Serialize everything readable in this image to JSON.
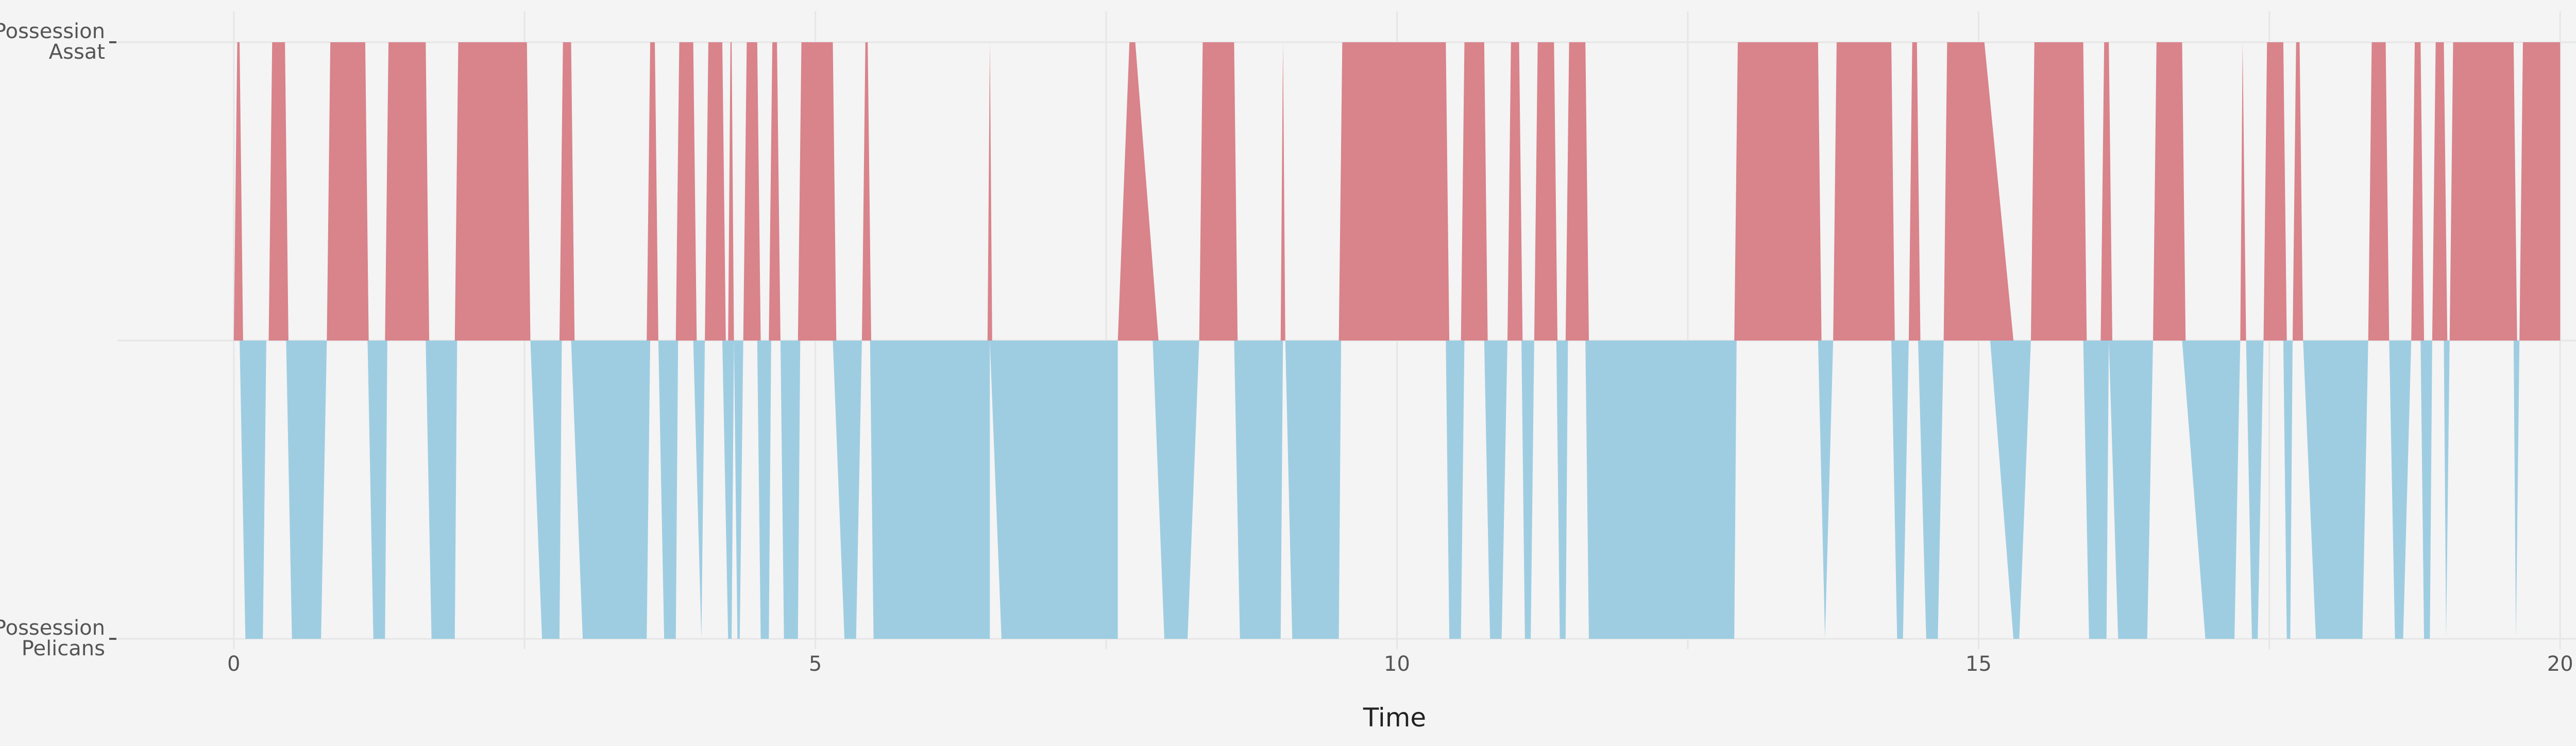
{
  "chart_data": {
    "type": "area",
    "title": "",
    "xlabel": "Time",
    "ylabel": "",
    "xlim": [
      -1,
      21
    ],
    "ylim": [
      -1,
      1
    ],
    "grid": true,
    "x_ticks": [
      0,
      5,
      10,
      15,
      20
    ],
    "y_ticks": [
      {
        "value": 1,
        "lines": [
          "Possession",
          "Assat"
        ]
      },
      {
        "value": -1,
        "lines": [
          "Possession",
          "Pelicans"
        ]
      }
    ],
    "colors": {
      "Assat": "#d9838b",
      "Pelicans": "#9ecde2",
      "background": "#f4f4f4",
      "grid": "#e6e6e6"
    },
    "series": [
      {
        "team": "Assat",
        "segments": [
          [
            0.0,
            0.03,
            0.05,
            0.08
          ],
          [
            0.3,
            0.33,
            0.44,
            0.47
          ],
          [
            0.8,
            0.83,
            1.13,
            1.16
          ],
          [
            1.3,
            1.33,
            1.65,
            1.68
          ],
          [
            1.9,
            1.93,
            2.52,
            2.55
          ],
          [
            2.8,
            2.83,
            2.9,
            2.93
          ],
          [
            3.55,
            3.58,
            3.62,
            3.65
          ],
          [
            3.8,
            3.83,
            3.95,
            3.98
          ],
          [
            4.05,
            4.08,
            4.2,
            4.23
          ],
          [
            4.25,
            4.27,
            4.28,
            4.3
          ],
          [
            4.38,
            4.41,
            4.5,
            4.53
          ],
          [
            4.6,
            4.63,
            4.67,
            4.7
          ],
          [
            4.85,
            4.88,
            5.15,
            5.18
          ],
          [
            5.4,
            5.43,
            5.45,
            5.48
          ],
          [
            6.48,
            6.5,
            6.5,
            6.52
          ],
          [
            7.6,
            7.7,
            7.75,
            7.95
          ],
          [
            8.3,
            8.33,
            8.6,
            8.63
          ],
          [
            9.0,
            9.02,
            9.02,
            9.04
          ],
          [
            9.5,
            9.53,
            10.42,
            10.45
          ],
          [
            10.55,
            10.58,
            10.75,
            10.78
          ],
          [
            10.95,
            10.98,
            11.05,
            11.08
          ],
          [
            11.18,
            11.21,
            11.35,
            11.38
          ],
          [
            11.45,
            11.48,
            11.62,
            11.65
          ],
          [
            12.9,
            12.93,
            13.62,
            13.65
          ],
          [
            13.75,
            13.78,
            14.25,
            14.28
          ],
          [
            14.4,
            14.43,
            14.47,
            14.5
          ],
          [
            14.7,
            14.73,
            15.05,
            15.3
          ],
          [
            15.45,
            15.48,
            15.9,
            15.93
          ],
          [
            16.05,
            16.08,
            16.12,
            16.15
          ],
          [
            16.5,
            16.53,
            16.75,
            16.78
          ],
          [
            17.25,
            17.27,
            17.27,
            17.3
          ],
          [
            17.45,
            17.48,
            17.62,
            17.65
          ],
          [
            17.7,
            17.73,
            17.76,
            17.79
          ],
          [
            18.35,
            18.38,
            18.5,
            18.53
          ],
          [
            18.72,
            18.75,
            18.8,
            18.83
          ],
          [
            18.9,
            18.93,
            19.0,
            19.03
          ],
          [
            19.05,
            19.08,
            19.6,
            19.63
          ],
          [
            19.65,
            19.68,
            20.0,
            20.0
          ]
        ]
      },
      {
        "team": "Pelicans",
        "segments": [
          [
            0.05,
            0.1,
            0.25,
            0.28
          ],
          [
            0.45,
            0.5,
            0.75,
            0.8
          ],
          [
            1.15,
            1.2,
            1.3,
            1.32
          ],
          [
            1.65,
            1.7,
            1.9,
            1.92
          ],
          [
            2.55,
            2.65,
            2.8,
            2.82
          ],
          [
            2.9,
            3.0,
            3.55,
            3.58
          ],
          [
            3.65,
            3.7,
            3.8,
            3.82
          ],
          [
            3.95,
            4.02,
            4.02,
            4.05
          ],
          [
            4.2,
            4.25,
            4.28,
            4.3
          ],
          [
            4.3,
            4.33,
            4.35,
            4.38
          ],
          [
            4.5,
            4.53,
            4.6,
            4.62
          ],
          [
            4.7,
            4.73,
            4.85,
            4.87
          ],
          [
            5.15,
            5.25,
            5.35,
            5.4
          ],
          [
            5.47,
            5.5,
            6.5,
            6.5
          ],
          [
            6.5,
            6.6,
            7.6,
            7.6
          ],
          [
            7.9,
            8.0,
            8.2,
            8.3
          ],
          [
            8.6,
            8.65,
            9.0,
            9.02
          ],
          [
            9.04,
            9.1,
            9.5,
            9.52
          ],
          [
            10.42,
            10.45,
            10.55,
            10.58
          ],
          [
            10.75,
            10.8,
            10.9,
            10.95
          ],
          [
            11.07,
            11.1,
            11.15,
            11.18
          ],
          [
            11.37,
            11.4,
            11.45,
            11.47
          ],
          [
            11.62,
            11.65,
            12.9,
            12.92
          ],
          [
            13.62,
            13.68,
            13.68,
            13.75
          ],
          [
            14.25,
            14.3,
            14.35,
            14.4
          ],
          [
            14.48,
            14.55,
            14.65,
            14.7
          ],
          [
            15.1,
            15.3,
            15.35,
            15.45
          ],
          [
            15.9,
            15.95,
            16.1,
            16.12
          ],
          [
            16.12,
            16.2,
            16.45,
            16.5
          ],
          [
            16.75,
            16.95,
            17.2,
            17.25
          ],
          [
            17.3,
            17.35,
            17.4,
            17.45
          ],
          [
            17.62,
            17.65,
            17.68,
            17.7
          ],
          [
            17.79,
            17.9,
            18.3,
            18.35
          ],
          [
            18.53,
            18.58,
            18.65,
            18.72
          ],
          [
            18.8,
            18.83,
            18.88,
            18.9
          ],
          [
            19.0,
            19.02,
            19.02,
            19.05
          ],
          [
            19.6,
            19.62,
            19.62,
            19.65
          ]
        ]
      }
    ]
  }
}
